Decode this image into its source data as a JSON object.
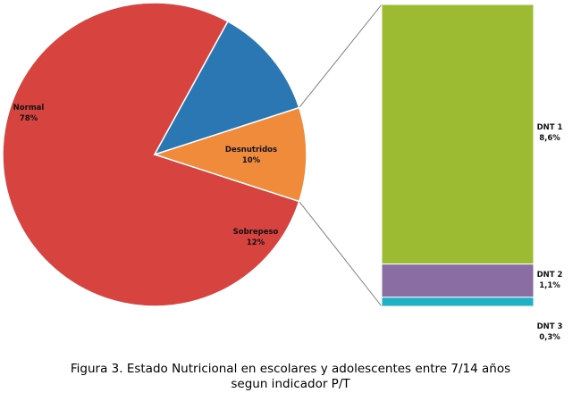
{
  "chart_data": {
    "type": "bar-of-pie",
    "pie": {
      "slices": [
        {
          "name": "Normal",
          "value": 78,
          "label": "78%",
          "color": "#d7433f"
        },
        {
          "name": "Desnutridos",
          "value": 10,
          "label": "10%",
          "color": "#ef8b3b"
        },
        {
          "name": "Sobrepeso",
          "value": 12,
          "label": "12%",
          "color": "#2a77b3"
        }
      ]
    },
    "breakdown": {
      "of": "Desnutridos",
      "segments": [
        {
          "name": "DNT 1",
          "value": 8.6,
          "label": "8,6%",
          "color": "#9cbb33"
        },
        {
          "name": "DNT 2",
          "value": 1.1,
          "label": "1,1%",
          "color": "#8a6ea3"
        },
        {
          "name": "DNT 3",
          "value": 0.3,
          "label": "0,3%",
          "color": "#1fb0c6"
        }
      ]
    },
    "legend": "none",
    "grid": false
  },
  "caption": {
    "line1": "Figura 3. Estado Nutricional en escolares y adolescentes entre 7/14 años",
    "line2": "segun indicador P/T"
  }
}
